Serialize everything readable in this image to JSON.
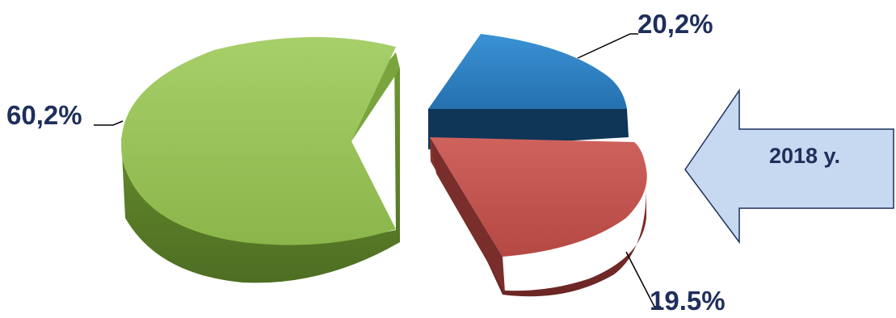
{
  "chart_data": {
    "type": "pie",
    "title": "",
    "slices": [
      {
        "label": "60,2%",
        "value": 60.2,
        "color": "#8fb94e"
      },
      {
        "label": "20,2%",
        "value": 20.2,
        "color": "#2a7fc1"
      },
      {
        "label": "19.5%",
        "value": 19.5,
        "color": "#bf504b"
      }
    ],
    "style": "3d-exploded",
    "legend": "none"
  },
  "callout": {
    "text": "2018 y.",
    "shape": "left-arrow",
    "fill": "#c6d9f1",
    "stroke": "#1f2f5c"
  }
}
